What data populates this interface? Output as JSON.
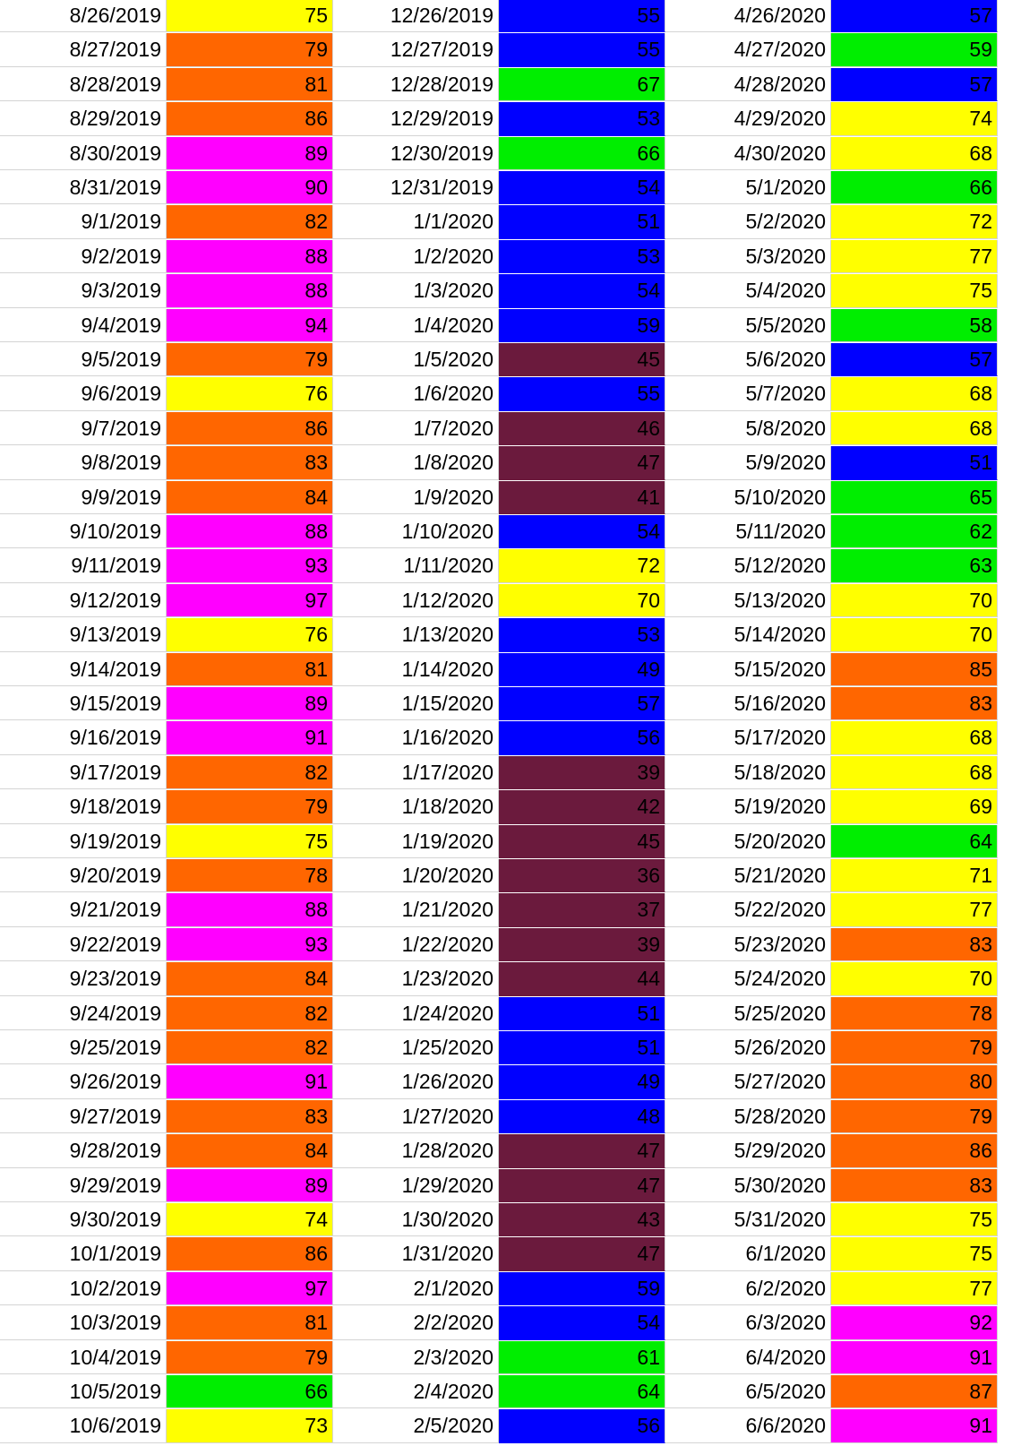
{
  "palette": {
    "yellow": "#ffff00",
    "orange": "#ff6600",
    "magenta": "#ff00ff",
    "green": "#00ee00",
    "blue": "#0000ff",
    "maroon": "#6b1a3d"
  },
  "columns": [
    {
      "dates": [
        "8/26/2019",
        "8/27/2019",
        "8/28/2019",
        "8/29/2019",
        "8/30/2019",
        "8/31/2019",
        "9/1/2019",
        "9/2/2019",
        "9/3/2019",
        "9/4/2019",
        "9/5/2019",
        "9/6/2019",
        "9/7/2019",
        "9/8/2019",
        "9/9/2019",
        "9/10/2019",
        "9/11/2019",
        "9/12/2019",
        "9/13/2019",
        "9/14/2019",
        "9/15/2019",
        "9/16/2019",
        "9/17/2019",
        "9/18/2019",
        "9/19/2019",
        "9/20/2019",
        "9/21/2019",
        "9/22/2019",
        "9/23/2019",
        "9/24/2019",
        "9/25/2019",
        "9/26/2019",
        "9/27/2019",
        "9/28/2019",
        "9/29/2019",
        "9/30/2019",
        "10/1/2019",
        "10/2/2019",
        "10/3/2019",
        "10/4/2019",
        "10/5/2019",
        "10/6/2019"
      ],
      "values": [
        "75",
        "79",
        "81",
        "86",
        "89",
        "90",
        "82",
        "88",
        "88",
        "94",
        "79",
        "76",
        "86",
        "83",
        "84",
        "88",
        "93",
        "97",
        "76",
        "81",
        "89",
        "91",
        "82",
        "79",
        "75",
        "78",
        "88",
        "93",
        "84",
        "82",
        "82",
        "91",
        "83",
        "84",
        "89",
        "74",
        "86",
        "97",
        "81",
        "79",
        "66",
        "73"
      ],
      "colors": [
        "yellow",
        "orange",
        "orange",
        "orange",
        "magenta",
        "magenta",
        "orange",
        "magenta",
        "magenta",
        "magenta",
        "orange",
        "yellow",
        "orange",
        "orange",
        "orange",
        "magenta",
        "magenta",
        "magenta",
        "yellow",
        "orange",
        "magenta",
        "magenta",
        "orange",
        "orange",
        "yellow",
        "orange",
        "magenta",
        "magenta",
        "orange",
        "orange",
        "orange",
        "magenta",
        "orange",
        "orange",
        "magenta",
        "yellow",
        "orange",
        "magenta",
        "orange",
        "orange",
        "green",
        "yellow"
      ]
    },
    {
      "dates": [
        "12/26/2019",
        "12/27/2019",
        "12/28/2019",
        "12/29/2019",
        "12/30/2019",
        "12/31/2019",
        "1/1/2020",
        "1/2/2020",
        "1/3/2020",
        "1/4/2020",
        "1/5/2020",
        "1/6/2020",
        "1/7/2020",
        "1/8/2020",
        "1/9/2020",
        "1/10/2020",
        "1/11/2020",
        "1/12/2020",
        "1/13/2020",
        "1/14/2020",
        "1/15/2020",
        "1/16/2020",
        "1/17/2020",
        "1/18/2020",
        "1/19/2020",
        "1/20/2020",
        "1/21/2020",
        "1/22/2020",
        "1/23/2020",
        "1/24/2020",
        "1/25/2020",
        "1/26/2020",
        "1/27/2020",
        "1/28/2020",
        "1/29/2020",
        "1/30/2020",
        "1/31/2020",
        "2/1/2020",
        "2/2/2020",
        "2/3/2020",
        "2/4/2020",
        "2/5/2020"
      ],
      "values": [
        "55",
        "55",
        "67",
        "53",
        "66",
        "54",
        "51",
        "53",
        "54",
        "59",
        "45",
        "55",
        "46",
        "47",
        "41",
        "54",
        "72",
        "70",
        "53",
        "49",
        "57",
        "56",
        "39",
        "42",
        "45",
        "36",
        "37",
        "39",
        "44",
        "51",
        "51",
        "49",
        "48",
        "47",
        "47",
        "43",
        "47",
        "59",
        "54",
        "61",
        "64",
        "56"
      ],
      "colors": [
        "blue",
        "blue",
        "green",
        "blue",
        "green",
        "blue",
        "blue",
        "blue",
        "blue",
        "blue",
        "maroon",
        "blue",
        "maroon",
        "maroon",
        "maroon",
        "blue",
        "yellow",
        "yellow",
        "blue",
        "blue",
        "blue",
        "blue",
        "maroon",
        "maroon",
        "maroon",
        "maroon",
        "maroon",
        "maroon",
        "maroon",
        "blue",
        "blue",
        "blue",
        "blue",
        "maroon",
        "maroon",
        "maroon",
        "maroon",
        "blue",
        "blue",
        "green",
        "green",
        "blue"
      ]
    },
    {
      "dates": [
        "4/26/2020",
        "4/27/2020",
        "4/28/2020",
        "4/29/2020",
        "4/30/2020",
        "5/1/2020",
        "5/2/2020",
        "5/3/2020",
        "5/4/2020",
        "5/5/2020",
        "5/6/2020",
        "5/7/2020",
        "5/8/2020",
        "5/9/2020",
        "5/10/2020",
        "5/11/2020",
        "5/12/2020",
        "5/13/2020",
        "5/14/2020",
        "5/15/2020",
        "5/16/2020",
        "5/17/2020",
        "5/18/2020",
        "5/19/2020",
        "5/20/2020",
        "5/21/2020",
        "5/22/2020",
        "5/23/2020",
        "5/24/2020",
        "5/25/2020",
        "5/26/2020",
        "5/27/2020",
        "5/28/2020",
        "5/29/2020",
        "5/30/2020",
        "5/31/2020",
        "6/1/2020",
        "6/2/2020",
        "6/3/2020",
        "6/4/2020",
        "6/5/2020",
        "6/6/2020"
      ],
      "values": [
        "57",
        "59",
        "57",
        "74",
        "68",
        "66",
        "72",
        "77",
        "75",
        "58",
        "57",
        "68",
        "68",
        "51",
        "65",
        "62",
        "63",
        "70",
        "70",
        "85",
        "83",
        "68",
        "68",
        "69",
        "64",
        "71",
        "77",
        "83",
        "70",
        "78",
        "79",
        "80",
        "79",
        "86",
        "83",
        "75",
        "75",
        "77",
        "92",
        "91",
        "87",
        "91"
      ],
      "colors": [
        "blue",
        "green",
        "blue",
        "yellow",
        "yellow",
        "green",
        "yellow",
        "yellow",
        "yellow",
        "green",
        "blue",
        "yellow",
        "yellow",
        "blue",
        "green",
        "green",
        "green",
        "yellow",
        "yellow",
        "orange",
        "orange",
        "yellow",
        "yellow",
        "yellow",
        "green",
        "yellow",
        "yellow",
        "orange",
        "yellow",
        "orange",
        "orange",
        "orange",
        "orange",
        "orange",
        "orange",
        "yellow",
        "yellow",
        "yellow",
        "magenta",
        "magenta",
        "orange",
        "magenta"
      ]
    }
  ]
}
